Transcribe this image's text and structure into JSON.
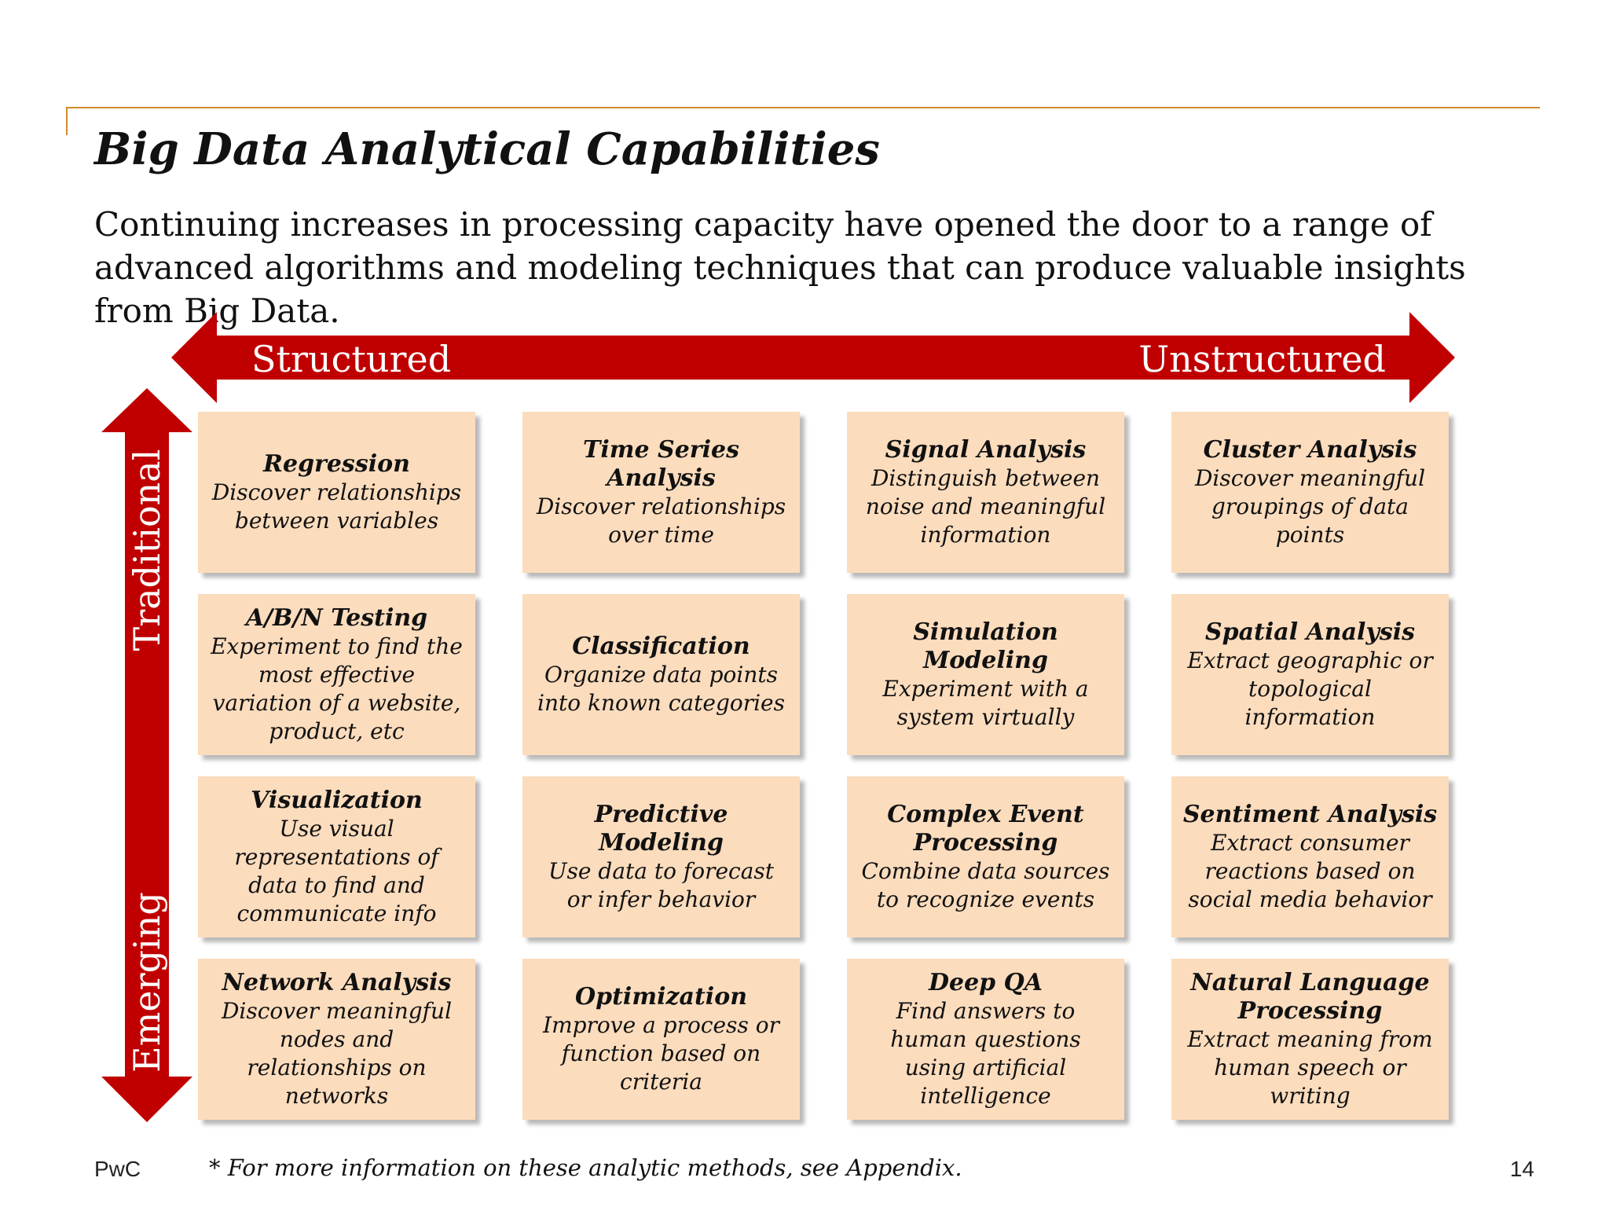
{
  "slide": {
    "title": "Big Data Analytical Capabilities",
    "subtitle": "Continuing increases in processing capacity have opened the door to a range of advanced algorithms and modeling techniques that can produce valuable insights from Big Data."
  },
  "axes": {
    "horizontal": {
      "left_label": "Structured",
      "right_label": "Unstructured"
    },
    "vertical": {
      "top_label": "Traditional",
      "bottom_label": "Emerging"
    },
    "color": "#c00000"
  },
  "cell_color": "#fbdcbd",
  "rule_color": "#d08a2e",
  "capabilities": [
    {
      "title": "Regression",
      "description": "Discover relationships between variables"
    },
    {
      "title": "Time Series Analysis",
      "description": "Discover relationships over time"
    },
    {
      "title": "Signal Analysis",
      "description": "Distinguish between noise and meaningful information"
    },
    {
      "title": "Cluster Analysis",
      "description": "Discover meaningful groupings of data points"
    },
    {
      "title": "A/B/N Testing",
      "description": "Experiment to find the most effective variation of a website, product, etc"
    },
    {
      "title": "Classification",
      "description": "Organize data points into known categories"
    },
    {
      "title": "Simulation Modeling",
      "description": "Experiment with a system virtually"
    },
    {
      "title": "Spatial Analysis",
      "description": "Extract geographic or topological information"
    },
    {
      "title": "Visualization",
      "description": "Use visual representations of data to find and communicate info"
    },
    {
      "title": "Predictive Modeling",
      "description": "Use data to forecast or infer behavior"
    },
    {
      "title": "Complex Event Processing",
      "description": "Combine data sources to recognize events"
    },
    {
      "title": "Sentiment Analysis",
      "description": "Extract consumer reactions based on social media behavior"
    },
    {
      "title": "Network Analysis",
      "description": "Discover meaningful nodes and relationships on networks"
    },
    {
      "title": "Optimization",
      "description": "Improve a process or function based on criteria"
    },
    {
      "title": "Deep QA",
      "description": "Find answers to human questions using artificial intelligence"
    },
    {
      "title": "Natural Language Processing",
      "description": "Extract meaning from human speech or writing"
    }
  ],
  "footer": {
    "brand": "PwC",
    "footnote": "* For more information on these analytic methods, see Appendix.",
    "page_number": "14"
  }
}
